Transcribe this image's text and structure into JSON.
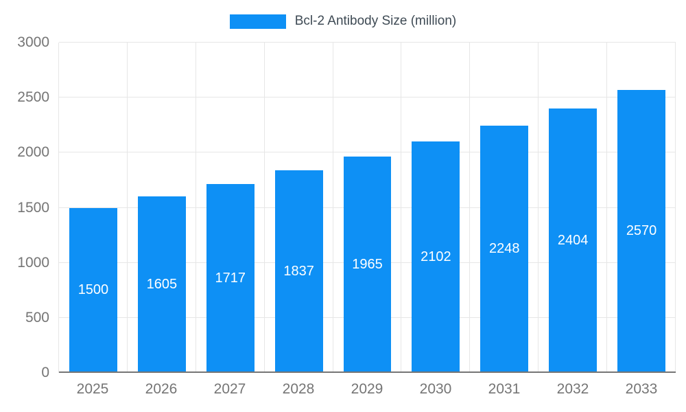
{
  "legend": {
    "label": "Bcl-2 Antibody Size (million)"
  },
  "colors": {
    "background": "#ffffff",
    "bar": "#0e90f5",
    "grid": "#e6e6e6",
    "axis": "#757575",
    "tick_text": "#757575",
    "legend_text": "#3e4a54",
    "bar_label_text": "#ffffff"
  },
  "chart_data": {
    "type": "bar",
    "title": "Bcl-2 Antibody Size (million)",
    "categories": [
      "2025",
      "2026",
      "2027",
      "2028",
      "2029",
      "2030",
      "2031",
      "2032",
      "2033"
    ],
    "values": [
      1500,
      1605,
      1717,
      1837,
      1965,
      2102,
      2248,
      2404,
      2570
    ],
    "xlabel": "",
    "ylabel": "",
    "ylim": [
      0,
      3000
    ],
    "yticks": [
      0,
      500,
      1000,
      1500,
      2000,
      2500,
      3000
    ],
    "grid": true,
    "legend_position": "top",
    "bar_value_labels": "inside-center"
  }
}
